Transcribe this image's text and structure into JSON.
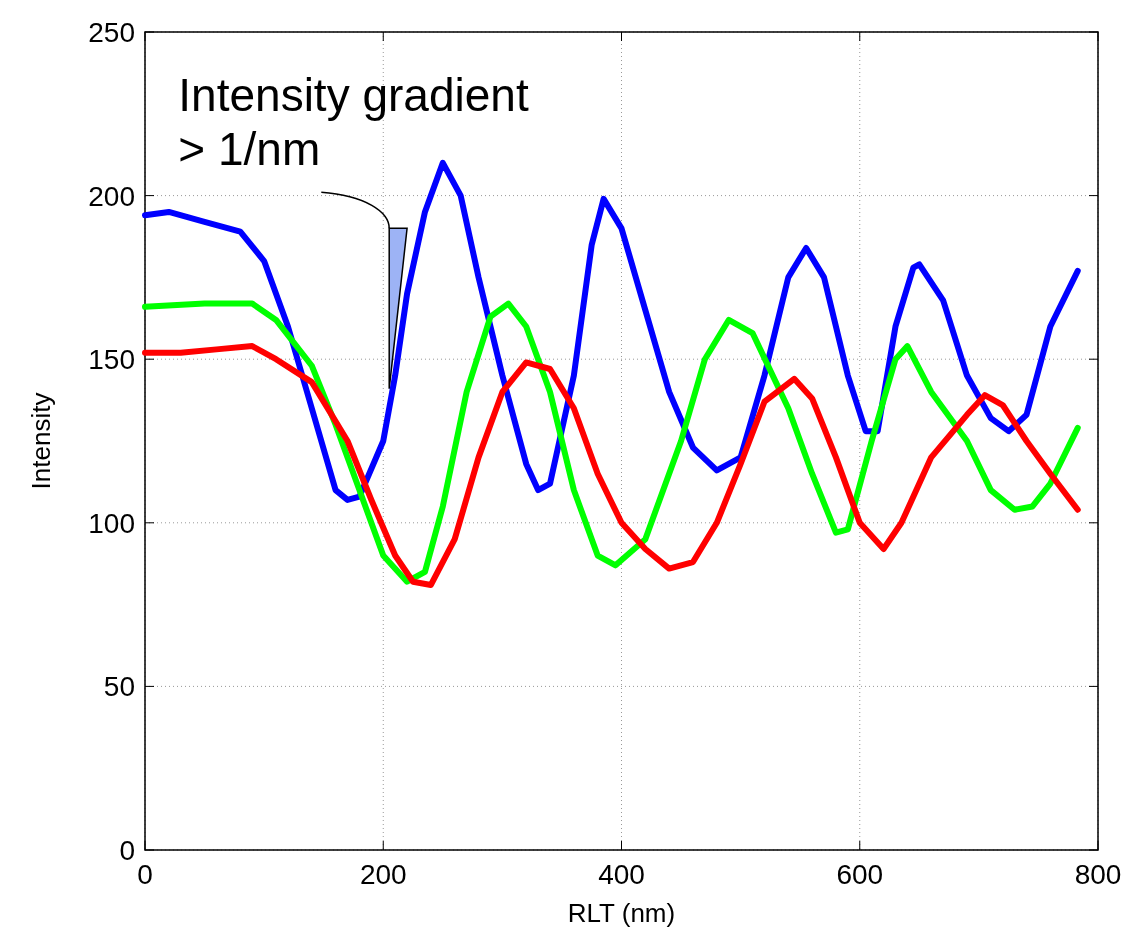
{
  "chart_data": {
    "type": "line",
    "xlabel": "RLT (nm)",
    "ylabel": "Intensity",
    "xlim": [
      0,
      800
    ],
    "xticks": [
      0,
      200,
      400,
      600,
      800
    ],
    "ylim": [
      0,
      250
    ],
    "yticks": [
      0,
      50,
      100,
      150,
      200,
      250
    ],
    "grid": true,
    "line_style": "solid",
    "annotations": [
      "Intensity gradient > 1/nm"
    ],
    "series": [
      {
        "color": "#0000ff",
        "x": [
          0,
          20,
          50,
          80,
          100,
          120,
          140,
          160,
          170,
          180,
          200,
          210,
          220,
          235,
          250,
          265,
          280,
          300,
          320,
          330,
          340,
          360,
          375,
          385,
          400,
          420,
          440,
          460,
          480,
          500,
          520,
          540,
          555,
          570,
          590,
          605,
          615,
          630,
          645,
          650,
          670,
          690,
          710,
          725,
          740,
          760,
          783
        ],
        "values": [
          194,
          195,
          192,
          189,
          180,
          160,
          135,
          110,
          107,
          108,
          125,
          145,
          170,
          195,
          210,
          200,
          175,
          145,
          118,
          110,
          112,
          145,
          185,
          199,
          190,
          165,
          140,
          123,
          116,
          120,
          145,
          175,
          184,
          175,
          145,
          128,
          128,
          160,
          178,
          179,
          168,
          145,
          132,
          128,
          133,
          160,
          177
        ]
      },
      {
        "color": "#00ff00",
        "x": [
          0,
          50,
          90,
          110,
          140,
          160,
          180,
          200,
          220,
          235,
          250,
          270,
          290,
          305,
          320,
          340,
          360,
          380,
          395,
          420,
          450,
          470,
          490,
          510,
          540,
          560,
          580,
          590,
          610,
          630,
          640,
          660,
          690,
          710,
          730,
          745,
          760,
          783
        ],
        "values": [
          166,
          167,
          167,
          162,
          148,
          130,
          110,
          90,
          82,
          85,
          105,
          140,
          163,
          167,
          160,
          140,
          110,
          90,
          87,
          95,
          125,
          150,
          162,
          158,
          135,
          115,
          97,
          98,
          125,
          150,
          154,
          140,
          125,
          110,
          104,
          105,
          112,
          129
        ]
      },
      {
        "color": "#ff0000",
        "x": [
          0,
          30,
          60,
          90,
          110,
          140,
          170,
          190,
          210,
          225,
          240,
          260,
          280,
          300,
          320,
          340,
          360,
          380,
          400,
          420,
          440,
          460,
          480,
          500,
          520,
          545,
          560,
          580,
          600,
          620,
          635,
          660,
          690,
          705,
          720,
          740,
          760,
          783
        ],
        "values": [
          152,
          152,
          153,
          154,
          150,
          143,
          125,
          107,
          90,
          82,
          81,
          95,
          120,
          140,
          149,
          147,
          135,
          115,
          100,
          92,
          86,
          88,
          100,
          118,
          137,
          144,
          138,
          120,
          100,
          92,
          100,
          120,
          133,
          139,
          136,
          125,
          115,
          104
        ]
      }
    ]
  }
}
